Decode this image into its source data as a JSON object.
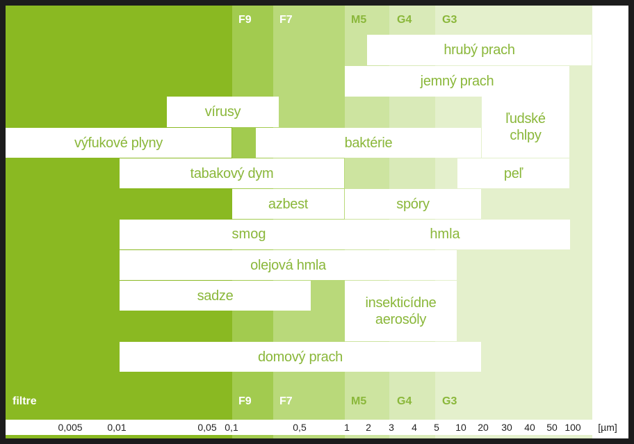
{
  "filter_classes": [
    {
      "label": "F9",
      "color": "#a2cb4f",
      "text_color": "#ffffff"
    },
    {
      "label": "F7",
      "color": "#b9d97a",
      "text_color": "#ffffff"
    },
    {
      "label": "M5",
      "color": "#cde4a0",
      "text_color": "#8ab73a"
    },
    {
      "label": "G4",
      "color": "#d9eab8",
      "text_color": "#8ab73a"
    },
    {
      "label": "G3",
      "color": "#e4f0cc",
      "text_color": "#8ab73a"
    }
  ],
  "base_color": "#8ab922",
  "bar_text_color": "#8ab73a",
  "row_label": "filtre",
  "unit": "[µm]",
  "ticks": [
    "0,005",
    "0,01",
    "0,05",
    "0,1",
    "0,5",
    "1",
    "2",
    "3",
    "4",
    "5",
    "10",
    "20",
    "30",
    "40",
    "50",
    "100"
  ],
  "particles": [
    {
      "name": "hrubý prach"
    },
    {
      "name": "jemný prach"
    },
    {
      "name": "vírusy"
    },
    {
      "name": "ľudské chlpy"
    },
    {
      "name": "výfukové plyny"
    },
    {
      "name": "baktérie"
    },
    {
      "name": "tabakový dym"
    },
    {
      "name": "peľ"
    },
    {
      "name": "azbest"
    },
    {
      "name": "spóry"
    },
    {
      "name": "smog"
    },
    {
      "name": "hmla"
    },
    {
      "name": "olejová hmla"
    },
    {
      "name": "sadze"
    },
    {
      "name": "insekticídne aerosóly"
    },
    {
      "name": "domový prach"
    }
  ]
}
